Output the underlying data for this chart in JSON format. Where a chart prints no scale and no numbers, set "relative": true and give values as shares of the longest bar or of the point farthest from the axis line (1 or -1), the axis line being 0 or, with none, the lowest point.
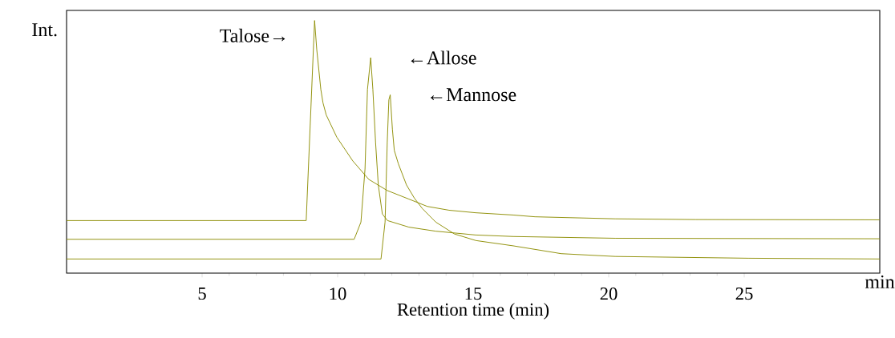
{
  "chart_data": {
    "type": "line",
    "relative": true,
    "xlabel": "Retention time (min)",
    "ylabel": "Int.",
    "xlim": [
      0,
      30
    ],
    "xticks": [
      5,
      10,
      15,
      20,
      25
    ],
    "series": [
      {
        "color": "#8c8c00",
        "x": [
          0,
          8.84,
          9.15,
          9.23,
          9.38,
          9.46,
          9.58,
          9.97,
          10.56,
          11.15,
          11.83,
          12.63,
          13.31,
          14.11,
          15.09,
          16.48,
          17.28,
          20.24,
          23.2,
          30
        ],
        "values": [
          0.208,
          0.208,
          1,
          0.885,
          0.727,
          0.674,
          0.626,
          0.538,
          0.444,
          0.371,
          0.327,
          0.293,
          0.264,
          0.249,
          0.239,
          0.23,
          0.223,
          0.215,
          0.212,
          0.211
        ]
      },
      {
        "color": "#8c8c00",
        "x": [
          0,
          10.61,
          10.86,
          11.01,
          11.1,
          11.22,
          11.3,
          11.4,
          11.5,
          11.65,
          11.84,
          12.63,
          13.62,
          15.09,
          16.48,
          20.24,
          30
        ],
        "values": [
          0.134,
          0.134,
          0.202,
          0.412,
          0.727,
          0.853,
          0.727,
          0.517,
          0.349,
          0.234,
          0.208,
          0.182,
          0.166,
          0.151,
          0.145,
          0.138,
          0.136
        ]
      },
      {
        "color": "#8c8c00",
        "x": [
          0,
          11.6,
          11.75,
          11.83,
          11.89,
          11.94,
          12.02,
          12.09,
          12.24,
          12.54,
          12.83,
          13.13,
          13.62,
          14.31,
          15.1,
          16.48,
          18.25,
          20.24,
          25.15,
          30
        ],
        "values": [
          0.056,
          0.056,
          0.202,
          0.517,
          0.686,
          0.706,
          0.57,
          0.486,
          0.433,
          0.349,
          0.297,
          0.255,
          0.202,
          0.155,
          0.129,
          0.108,
          0.077,
          0.066,
          0.059,
          0.056
        ]
      }
    ],
    "annotations": [
      {
        "text": "Talose→",
        "x": 9.15,
        "y": 1
      },
      {
        "text": "←Allose",
        "x": 11.22,
        "y": 0.853
      },
      {
        "text": "←Mannose",
        "x": 11.94,
        "y": 0.706
      },
      "min"
    ],
    "grid": false
  }
}
